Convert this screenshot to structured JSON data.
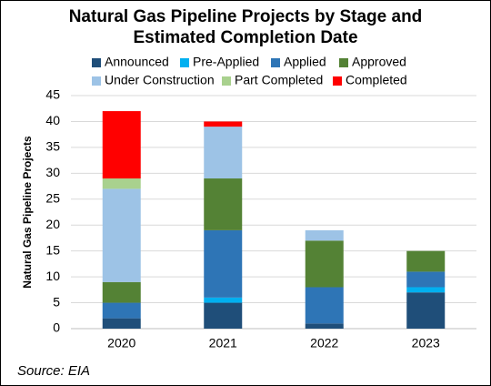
{
  "chart_data": {
    "type": "stacked_bar",
    "title": "Natural Gas Pipeline Projects by Stage and Estimated Completion Date",
    "y_label": "Natural Gas Pipeline Projects",
    "source": "Source: EIA",
    "categories": [
      "2020",
      "2021",
      "2022",
      "2023"
    ],
    "series": [
      {
        "name": "Announced",
        "color": "#1f4e79",
        "values": [
          2,
          5,
          1,
          7
        ]
      },
      {
        "name": "Pre-Applied",
        "color": "#00b0f0",
        "values": [
          0,
          1,
          0,
          1
        ]
      },
      {
        "name": "Applied",
        "color": "#2e75b6",
        "values": [
          3,
          13,
          7,
          3
        ]
      },
      {
        "name": "Approved",
        "color": "#548235",
        "values": [
          4,
          10,
          9,
          4
        ]
      },
      {
        "name": "Under Construction",
        "color": "#9dc3e6",
        "values": [
          18,
          10,
          2,
          0
        ]
      },
      {
        "name": "Part Completed",
        "color": "#a9d18e",
        "values": [
          2,
          0,
          0,
          0
        ]
      },
      {
        "name": "Completed",
        "color": "#ff0000",
        "values": [
          13,
          1,
          0,
          0
        ]
      }
    ],
    "ylim": [
      0,
      45
    ],
    "yticks": [
      0,
      5,
      10,
      15,
      20,
      25,
      30,
      35,
      40,
      45
    ],
    "grid": true
  }
}
